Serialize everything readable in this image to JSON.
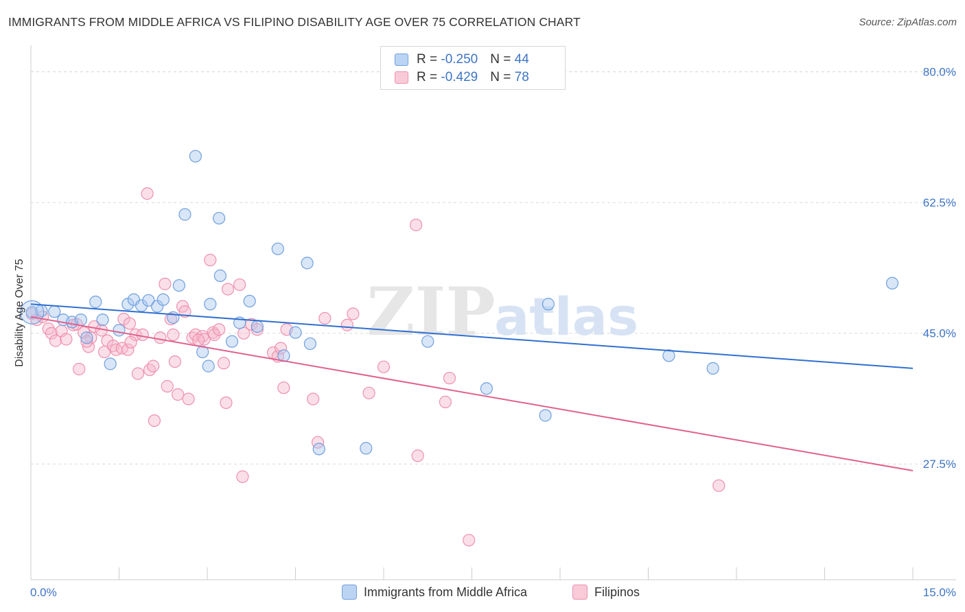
{
  "title": "IMMIGRANTS FROM MIDDLE AFRICA VS FILIPINO DISABILITY AGE OVER 75 CORRELATION CHART",
  "source": "Source: ZipAtlas.com",
  "watermark": {
    "zip": "ZIP",
    "atlas": "atlas"
  },
  "legend": {
    "rows": [
      {
        "r_label": "R = ",
        "r_value": "-0.250",
        "n_label": "N = ",
        "n_value": "44"
      },
      {
        "r_label": "R = ",
        "r_value": "-0.429",
        "n_label": "N = ",
        "n_value": "78"
      }
    ]
  },
  "colors": {
    "blue_fill": "#a9c8f0",
    "blue_stroke": "#6f9fde",
    "blue_line": "#2f6fd1",
    "pink_fill": "#f7b9cc",
    "pink_stroke": "#ee90ae",
    "pink_line": "#e0608e",
    "grid": "#d9d9d9",
    "tick_label": "#3d74c5"
  },
  "chart_data": {
    "type": "scatter",
    "title": "IMMIGRANTS FROM MIDDLE AFRICA VS FILIPINO DISABILITY AGE OVER 75 CORRELATION CHART",
    "xlabel": "",
    "ylabel": "Disability Age Over 75",
    "xlim": [
      0,
      15
    ],
    "ylim": [
      12,
      83
    ],
    "x_tick_labels": [
      "0.0%",
      "15.0%"
    ],
    "y_ticks": [
      27.5,
      45.0,
      62.5,
      80.0
    ],
    "y_tick_labels": [
      "27.5%",
      "45.0%",
      "62.5%",
      "80.0%"
    ],
    "grid": true,
    "legend_position": "top-center",
    "series": [
      {
        "name": "Immigrants from Middle Africa",
        "color": "blue",
        "r": -0.25,
        "n": 44,
        "trend": {
          "x": [
            0,
            15
          ],
          "y": [
            48.9,
            40.3
          ]
        },
        "points": [
          [
            0.02,
            47.8
          ],
          [
            0.18,
            48.0
          ],
          [
            0.4,
            47.9
          ],
          [
            0.55,
            46.8
          ],
          [
            0.7,
            46.5
          ],
          [
            0.85,
            46.8
          ],
          [
            0.95,
            44.4
          ],
          [
            1.1,
            49.2
          ],
          [
            1.22,
            46.8
          ],
          [
            1.35,
            40.9
          ],
          [
            1.5,
            45.4
          ],
          [
            1.65,
            48.9
          ],
          [
            1.75,
            49.5
          ],
          [
            1.88,
            48.7
          ],
          [
            2.0,
            49.4
          ],
          [
            2.15,
            48.6
          ],
          [
            2.25,
            49.5
          ],
          [
            2.42,
            47.1
          ],
          [
            2.52,
            51.4
          ],
          [
            2.62,
            60.9
          ],
          [
            2.8,
            68.7
          ],
          [
            2.92,
            42.5
          ],
          [
            3.02,
            40.6
          ],
          [
            3.2,
            60.4
          ],
          [
            3.22,
            52.7
          ],
          [
            3.42,
            43.9
          ],
          [
            3.55,
            46.4
          ],
          [
            3.72,
            49.3
          ],
          [
            3.85,
            45.9
          ],
          [
            4.2,
            56.3
          ],
          [
            4.3,
            42.0
          ],
          [
            4.5,
            45.1
          ],
          [
            4.7,
            54.4
          ],
          [
            4.75,
            43.6
          ],
          [
            4.9,
            29.5
          ],
          [
            5.7,
            29.6
          ],
          [
            6.75,
            43.9
          ],
          [
            7.75,
            37.6
          ],
          [
            8.75,
            34.0
          ],
          [
            8.8,
            48.9
          ],
          [
            10.85,
            42.0
          ],
          [
            11.6,
            40.3
          ],
          [
            14.65,
            51.7
          ],
          [
            3.05,
            48.9
          ]
        ]
      },
      {
        "name": "Filipinos",
        "color": "pink",
        "r": -0.429,
        "n": 78,
        "trend": {
          "x": [
            0,
            15
          ],
          "y": [
            47.2,
            26.6
          ]
        },
        "points": [
          [
            0.02,
            47.6
          ],
          [
            0.1,
            46.8
          ],
          [
            0.2,
            47.2
          ],
          [
            0.3,
            45.6
          ],
          [
            0.35,
            45.0
          ],
          [
            0.42,
            44.0
          ],
          [
            0.52,
            45.3
          ],
          [
            0.6,
            44.2
          ],
          [
            0.72,
            46.1
          ],
          [
            0.78,
            46.2
          ],
          [
            0.82,
            40.2
          ],
          [
            0.9,
            45.1
          ],
          [
            0.98,
            43.2
          ],
          [
            1.02,
            44.4
          ],
          [
            1.08,
            45.9
          ],
          [
            1.2,
            45.4
          ],
          [
            1.25,
            42.5
          ],
          [
            1.3,
            44.0
          ],
          [
            1.4,
            43.3
          ],
          [
            1.45,
            42.8
          ],
          [
            1.55,
            43.0
          ],
          [
            1.58,
            46.9
          ],
          [
            1.65,
            42.8
          ],
          [
            1.68,
            46.3
          ],
          [
            1.78,
            44.8
          ],
          [
            1.82,
            39.6
          ],
          [
            1.9,
            44.8
          ],
          [
            1.98,
            63.7
          ],
          [
            2.02,
            40.1
          ],
          [
            2.08,
            40.6
          ],
          [
            2.1,
            33.3
          ],
          [
            2.2,
            44.4
          ],
          [
            2.28,
            51.6
          ],
          [
            2.32,
            37.9
          ],
          [
            2.38,
            46.9
          ],
          [
            2.42,
            44.8
          ],
          [
            2.5,
            36.8
          ],
          [
            2.58,
            48.6
          ],
          [
            2.62,
            47.9
          ],
          [
            2.68,
            36.2
          ],
          [
            2.75,
            44.4
          ],
          [
            2.8,
            44.8
          ],
          [
            2.92,
            44.6
          ],
          [
            2.95,
            44.2
          ],
          [
            3.05,
            54.8
          ],
          [
            3.1,
            45.1
          ],
          [
            3.12,
            44.8
          ],
          [
            3.2,
            45.5
          ],
          [
            3.28,
            41.0
          ],
          [
            3.32,
            35.7
          ],
          [
            3.35,
            50.9
          ],
          [
            3.55,
            51.5
          ],
          [
            3.62,
            45.0
          ],
          [
            3.75,
            46.2
          ],
          [
            3.85,
            45.5
          ],
          [
            4.12,
            42.4
          ],
          [
            4.2,
            41.9
          ],
          [
            4.25,
            43.0
          ],
          [
            4.3,
            37.7
          ],
          [
            4.35,
            45.5
          ],
          [
            4.8,
            36.2
          ],
          [
            4.88,
            30.4
          ],
          [
            5.0,
            47.0
          ],
          [
            5.38,
            46.1
          ],
          [
            5.48,
            47.6
          ],
          [
            5.75,
            37.0
          ],
          [
            6.0,
            40.5
          ],
          [
            6.55,
            59.5
          ],
          [
            6.58,
            28.6
          ],
          [
            7.05,
            35.8
          ],
          [
            7.12,
            39.0
          ],
          [
            7.45,
            17.3
          ],
          [
            3.6,
            25.8
          ],
          [
            11.7,
            24.6
          ],
          [
            2.85,
            44.1
          ],
          [
            1.7,
            43.8
          ],
          [
            0.95,
            43.9
          ],
          [
            2.45,
            41.2
          ]
        ]
      }
    ]
  },
  "bottom_legend": {
    "items": [
      {
        "label": "Immigrants from Middle Africa",
        "color": "blue"
      },
      {
        "label": "Filipinos",
        "color": "pink"
      }
    ]
  }
}
